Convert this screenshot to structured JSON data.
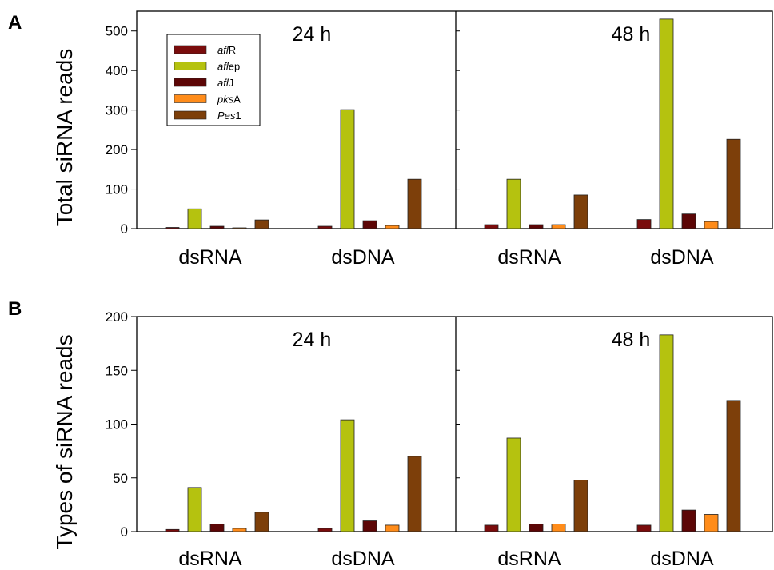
{
  "colors": {
    "aflR": "#7a0c0c",
    "aflep": "#b5c20f",
    "aflJ": "#5c0606",
    "pksA": "#ff8c1a",
    "Pes1": "#7d3f0a"
  },
  "legend": [
    {
      "key": "aflR",
      "italic": "afl",
      "rest": "R"
    },
    {
      "key": "aflep",
      "italic": "afl",
      "rest": "ep"
    },
    {
      "key": "aflJ",
      "italic": "afl",
      "rest": "J"
    },
    {
      "key": "pksA",
      "italic": "pks",
      "rest": "A"
    },
    {
      "key": "Pes1",
      "italic": "Pes",
      "rest": "1"
    }
  ],
  "chart_data": [
    {
      "type": "bar",
      "panel": "A",
      "ylabel": "Total siRNA reads",
      "ylim": [
        0,
        550
      ],
      "yticks": [
        0,
        100,
        200,
        300,
        400,
        500
      ],
      "subpanels": [
        {
          "title": "24 h",
          "groups": [
            {
              "name": "dsRNA",
              "values": {
                "aflR": 3,
                "aflep": 50,
                "aflJ": 6,
                "pksA": 2,
                "Pes1": 22
              }
            },
            {
              "name": "dsDNA",
              "values": {
                "aflR": 6,
                "aflep": 301,
                "aflJ": 20,
                "pksA": 8,
                "Pes1": 125
              }
            }
          ]
        },
        {
          "title": "48 h",
          "groups": [
            {
              "name": "dsRNA",
              "values": {
                "aflR": 10,
                "aflep": 125,
                "aflJ": 10,
                "pksA": 10,
                "Pes1": 85
              }
            },
            {
              "name": "dsDNA",
              "values": {
                "aflR": 23,
                "aflep": 530,
                "aflJ": 37,
                "pksA": 18,
                "Pes1": 226
              }
            }
          ]
        }
      ]
    },
    {
      "type": "bar",
      "panel": "B",
      "ylabel": "Types of siRNA reads",
      "ylim": [
        0,
        200
      ],
      "yticks": [
        0,
        50,
        100,
        150,
        200
      ],
      "subpanels": [
        {
          "title": "24 h",
          "groups": [
            {
              "name": "dsRNA",
              "values": {
                "aflR": 2,
                "aflep": 41,
                "aflJ": 7,
                "pksA": 3,
                "Pes1": 18
              }
            },
            {
              "name": "dsDNA",
              "values": {
                "aflR": 3,
                "aflep": 104,
                "aflJ": 10,
                "pksA": 6,
                "Pes1": 70
              }
            }
          ]
        },
        {
          "title": "48 h",
          "groups": [
            {
              "name": "dsRNA",
              "values": {
                "aflR": 6,
                "aflep": 87,
                "aflJ": 7,
                "pksA": 7,
                "Pes1": 48
              }
            },
            {
              "name": "dsDNA",
              "values": {
                "aflR": 6,
                "aflep": 183,
                "aflJ": 20,
                "pksA": 16,
                "Pes1": 122
              }
            }
          ]
        }
      ]
    }
  ]
}
